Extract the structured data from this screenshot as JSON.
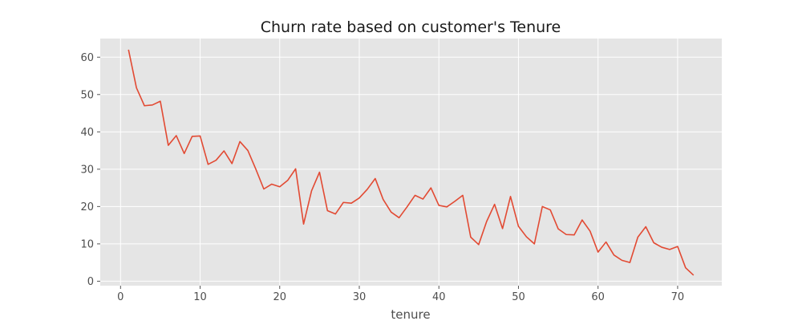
{
  "chart_data": {
    "type": "line",
    "title": "Churn rate based on customer's Tenure",
    "xlabel": "tenure",
    "ylabel": "",
    "xlim": [
      -2.55,
      75.55
    ],
    "ylim": [
      -1.2,
      65.0
    ],
    "xticks": [
      0,
      10,
      20,
      30,
      40,
      50,
      60,
      70
    ],
    "yticks": [
      0,
      10,
      20,
      30,
      40,
      50,
      60
    ],
    "grid": true,
    "legend": "none",
    "series": [
      {
        "color": "#e24a33",
        "x": [
          1,
          2,
          3,
          4,
          5,
          6,
          7,
          8,
          9,
          10,
          11,
          12,
          13,
          14,
          15,
          16,
          17,
          18,
          19,
          20,
          21,
          22,
          23,
          24,
          25,
          26,
          27,
          28,
          29,
          30,
          31,
          32,
          33,
          34,
          35,
          36,
          37,
          38,
          39,
          40,
          41,
          42,
          43,
          44,
          45,
          46,
          47,
          48,
          49,
          50,
          51,
          52,
          53,
          54,
          55,
          56,
          57,
          58,
          59,
          60,
          61,
          62,
          63,
          64,
          65,
          66,
          67,
          68,
          69,
          70,
          71,
          72
        ],
        "values": [
          62.0,
          51.8,
          47.0,
          47.2,
          48.2,
          36.4,
          39.0,
          34.2,
          38.8,
          38.9,
          31.3,
          32.4,
          34.9,
          31.5,
          37.4,
          35.0,
          30.0,
          24.7,
          26.0,
          25.3,
          27.0,
          30.1,
          15.3,
          24.2,
          29.2,
          18.9,
          18.0,
          21.1,
          20.9,
          22.3,
          24.6,
          27.5,
          21.9,
          18.5,
          17.0,
          19.9,
          23.0,
          22.0,
          25.0,
          20.3,
          19.9,
          21.4,
          23.0,
          11.8,
          9.8,
          16.0,
          20.6,
          14.1,
          22.7,
          14.7,
          11.9,
          10.0,
          20.0,
          19.1,
          14.0,
          12.5,
          12.4,
          16.4,
          13.4,
          7.8,
          10.5,
          7.0,
          5.6,
          5.0,
          11.8,
          14.6,
          10.3,
          9.1,
          8.5,
          9.3,
          3.6,
          1.6
        ]
      }
    ]
  }
}
